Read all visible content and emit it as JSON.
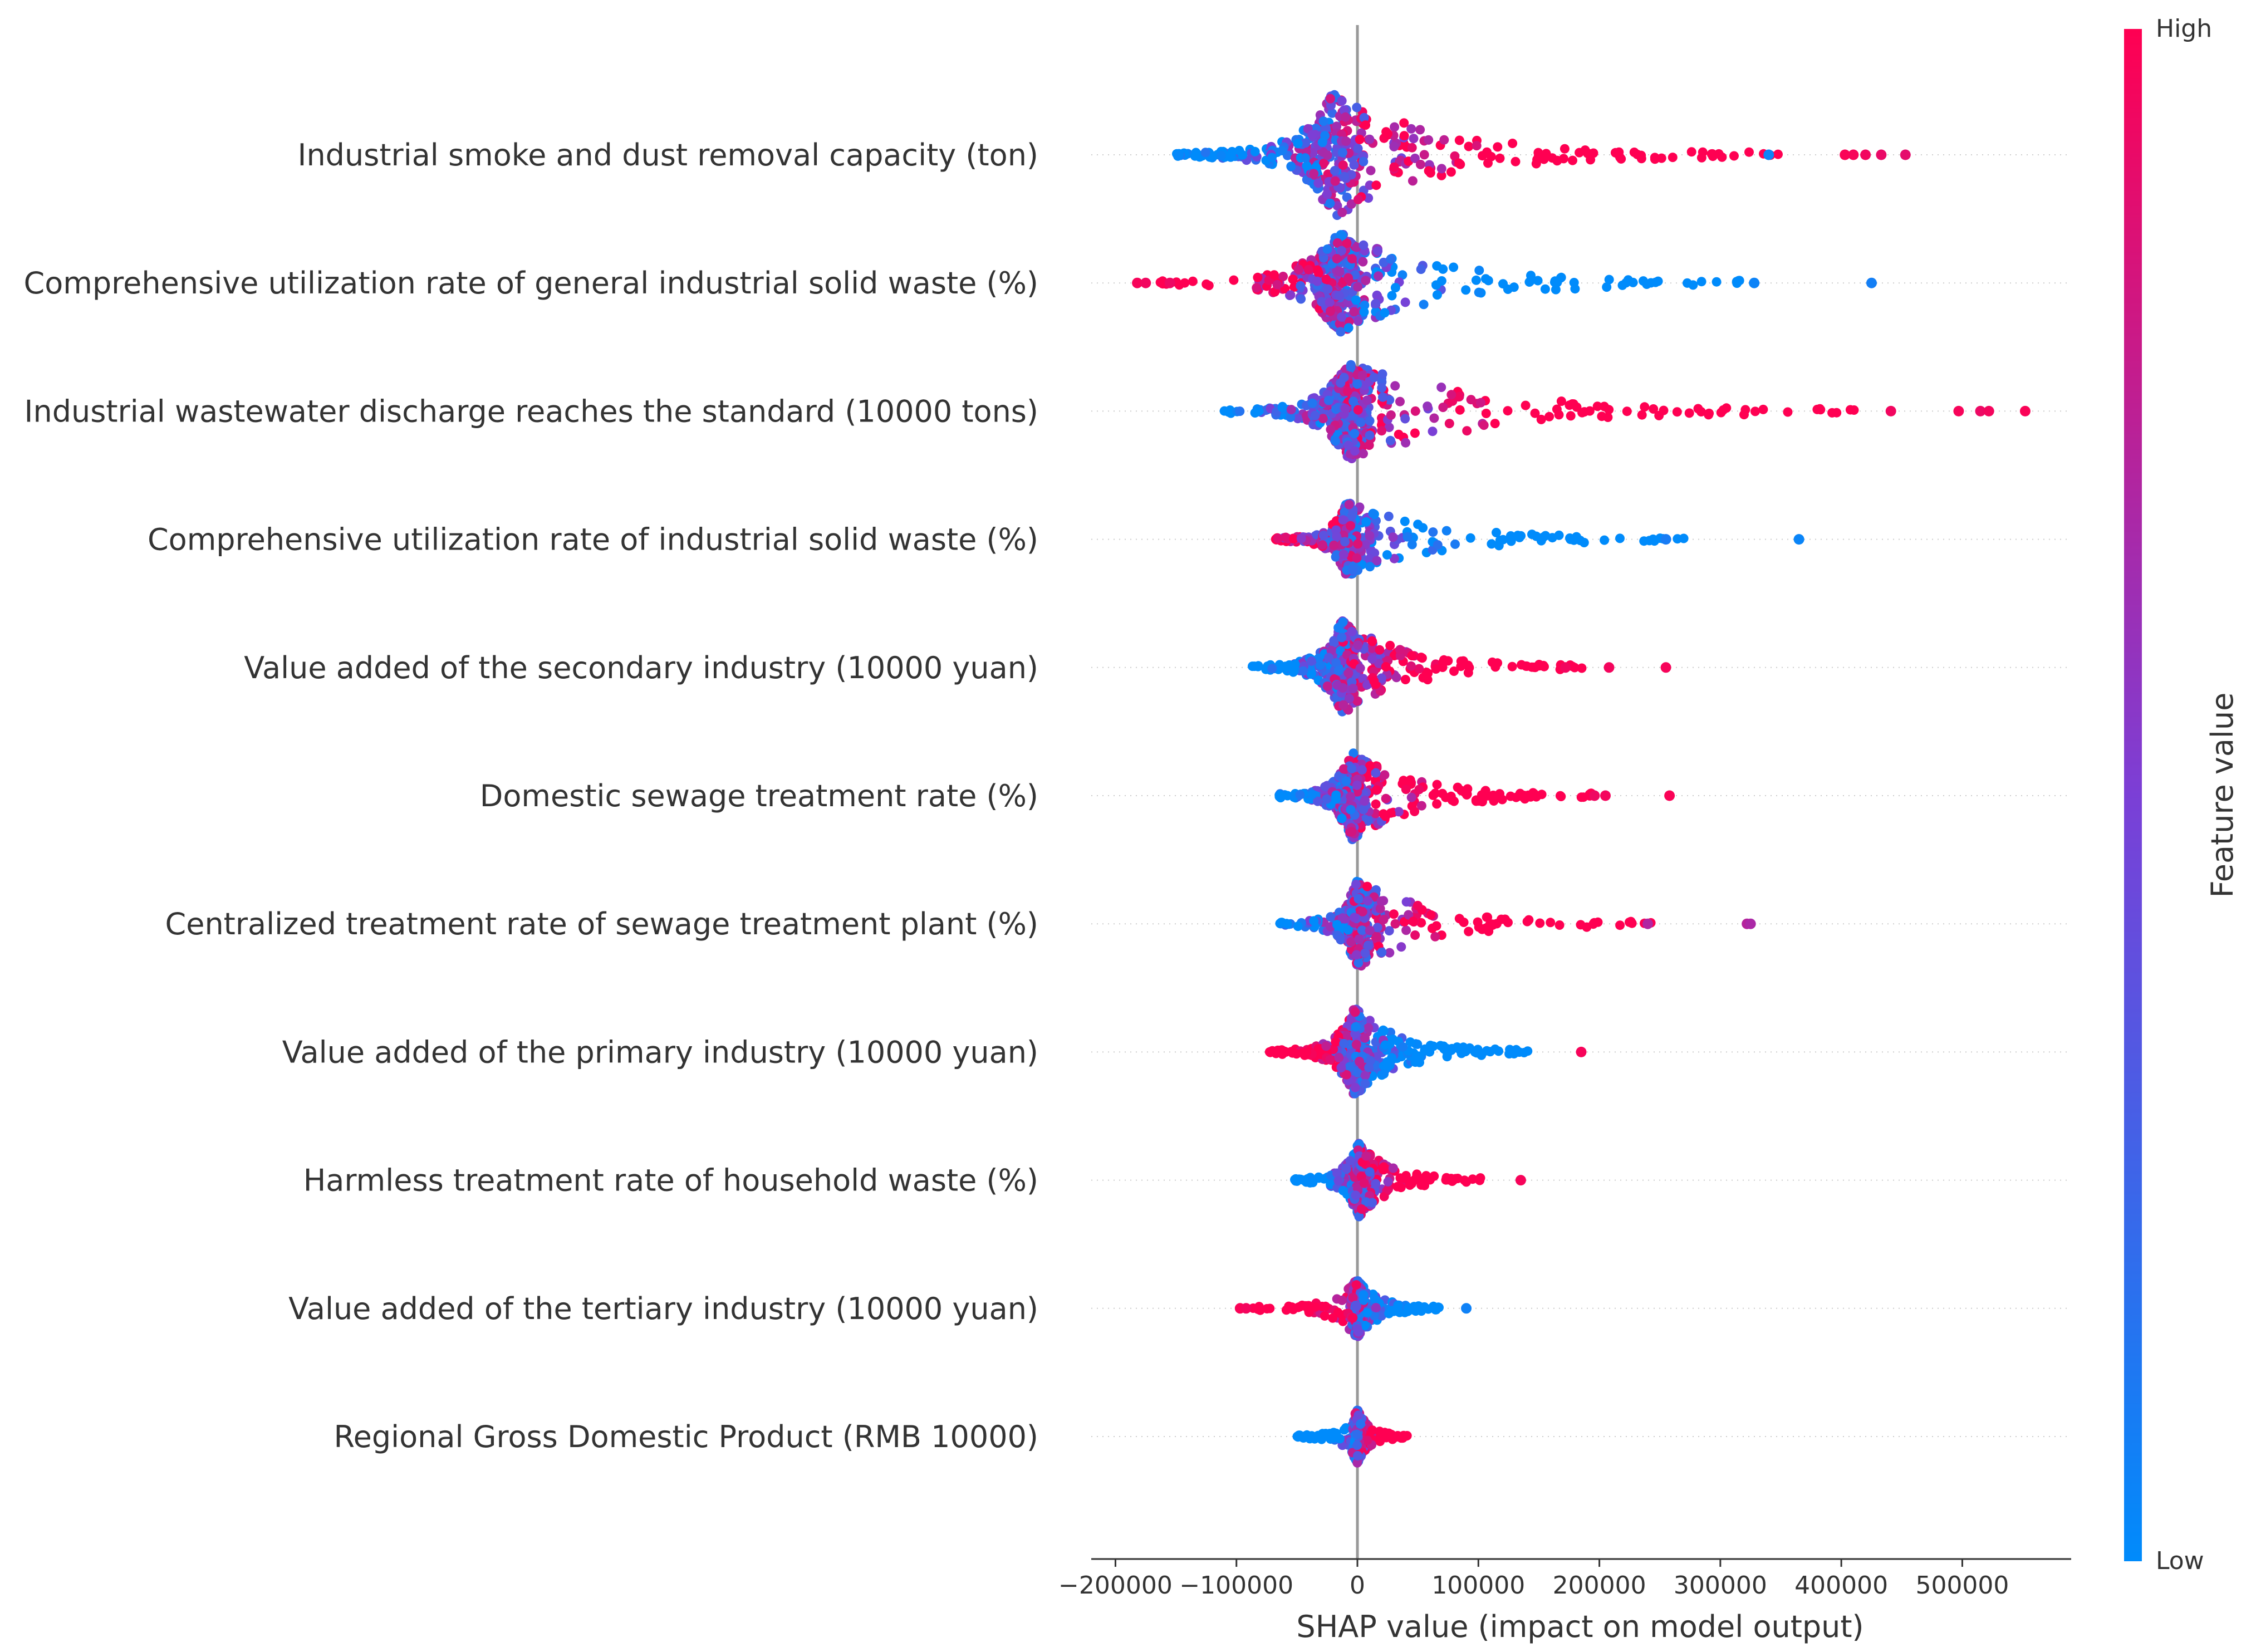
{
  "chart_data": {
    "type": "scatter",
    "subtype": "shap-beeswarm",
    "title": "",
    "xlabel": "SHAP value (impact on model output)",
    "xlim": [
      -220000,
      590000
    ],
    "xticks": [
      -200000,
      -100000,
      0,
      100000,
      200000,
      300000,
      400000,
      500000
    ],
    "xtick_labels": [
      "−200000",
      "−100000",
      "0",
      "100000",
      "200000",
      "300000",
      "400000",
      "500000"
    ],
    "grid": false,
    "zero_line": true,
    "colorbar": {
      "label": "Feature value",
      "high_label": "High",
      "low_label": "Low",
      "low_color": "#008bfb",
      "high_color": "#ff0052",
      "placement": "right"
    },
    "features": [
      {
        "name": "Industrial smoke and dust removal capacity (ton)",
        "range": [
          -160000,
          455000
        ],
        "core": [
          -70000,
          30000
        ],
        "core_width": 0.48,
        "low_side": "negative",
        "outliers": [
          {
            "x": 340000,
            "v": 0.05
          },
          {
            "x": 403000,
            "v": 0.98
          },
          {
            "x": 410000,
            "v": 0.97
          },
          {
            "x": 420000,
            "v": 0.95
          },
          {
            "x": 433000,
            "v": 0.92
          },
          {
            "x": 453000,
            "v": 0.9
          }
        ]
      },
      {
        "name": "Comprehensive utilization rate of general industrial solid waste (%)",
        "range": [
          -185000,
          425000
        ],
        "core": [
          -45000,
          15000
        ],
        "core_width": 0.38,
        "low_side": "positive",
        "outliers": [
          {
            "x": -182000,
            "v": 0.97
          },
          {
            "x": -175000,
            "v": 0.95
          },
          {
            "x": -155000,
            "v": 0.93
          },
          {
            "x": 328000,
            "v": 0.05
          },
          {
            "x": 425000,
            "v": 0.08
          }
        ]
      },
      {
        "name": "Industrial wastewater discharge reaches the standard (10000 tons)",
        "range": [
          -120000,
          552000
        ],
        "core": [
          -35000,
          20000
        ],
        "core_width": 0.38,
        "low_side": "negative",
        "outliers": [
          {
            "x": 441000,
            "v": 0.95
          },
          {
            "x": 497000,
            "v": 0.97
          },
          {
            "x": 515000,
            "v": 0.93
          },
          {
            "x": 522000,
            "v": 0.96
          },
          {
            "x": 552000,
            "v": 0.98
          }
        ]
      },
      {
        "name": "Comprehensive utilization rate of industrial solid waste (%)",
        "range": [
          -72000,
          365000
        ],
        "core": [
          -28000,
          10000
        ],
        "core_width": 0.28,
        "low_side": "positive",
        "outliers": [
          {
            "x": 255000,
            "v": 0.1
          },
          {
            "x": 365000,
            "v": 0.04
          }
        ]
      },
      {
        "name": "Value added of the secondary industry (10000 yuan)",
        "range": [
          -95000,
          255000
        ],
        "core": [
          -38000,
          12000
        ],
        "core_width": 0.36,
        "low_side": "negative",
        "outliers": [
          {
            "x": 172000,
            "v": 0.95
          },
          {
            "x": 208000,
            "v": 0.96
          },
          {
            "x": 255000,
            "v": 0.97
          }
        ]
      },
      {
        "name": "Domestic sewage treatment rate (%)",
        "range": [
          -72000,
          258000
        ],
        "core": [
          -25000,
          15000
        ],
        "core_width": 0.34,
        "low_side": "negative",
        "outliers": [
          {
            "x": 196000,
            "v": 0.94
          },
          {
            "x": 205000,
            "v": 0.96
          },
          {
            "x": 258000,
            "v": 0.98
          }
        ]
      },
      {
        "name": "Centralized treatment rate of sewage treatment plant (%)",
        "range": [
          -70000,
          325000
        ],
        "core": [
          -15000,
          15000
        ],
        "core_width": 0.34,
        "low_side": "negative",
        "outliers": [
          {
            "x": 240000,
            "v": 0.7
          },
          {
            "x": 322000,
            "v": 0.72
          },
          {
            "x": 325000,
            "v": 0.68
          }
        ]
      },
      {
        "name": "Value added of the primary industry (10000 yuan)",
        "range": [
          -78000,
          185000
        ],
        "core": [
          -25000,
          20000
        ],
        "core_width": 0.34,
        "low_side": "positive",
        "outliers": [
          {
            "x": 185000,
            "v": 0.97
          }
        ]
      },
      {
        "name": "Harmless treatment rate of household waste (%)",
        "range": [
          -60000,
          135000
        ],
        "core": [
          -8000,
          10000
        ],
        "core_width": 0.28,
        "low_side": "negative",
        "outliers": [
          {
            "x": 135000,
            "v": 0.97
          }
        ]
      },
      {
        "name": "Value added of the tertiary industry (10000 yuan)",
        "range": [
          -97000,
          90000
        ],
        "core": [
          -5000,
          5000
        ],
        "core_width": 0.22,
        "low_side": "positive",
        "outliers": [
          {
            "x": -97000,
            "v": 0.98
          },
          {
            "x": -92000,
            "v": 0.96
          },
          {
            "x": 90000,
            "v": 0.06
          }
        ]
      },
      {
        "name": "Regional Gross Domestic Product (RMB 10000)",
        "range": [
          -55000,
          55000
        ],
        "core": [
          -3000,
          3000
        ],
        "core_width": 0.2,
        "low_side": "negative",
        "outliers": []
      }
    ]
  }
}
